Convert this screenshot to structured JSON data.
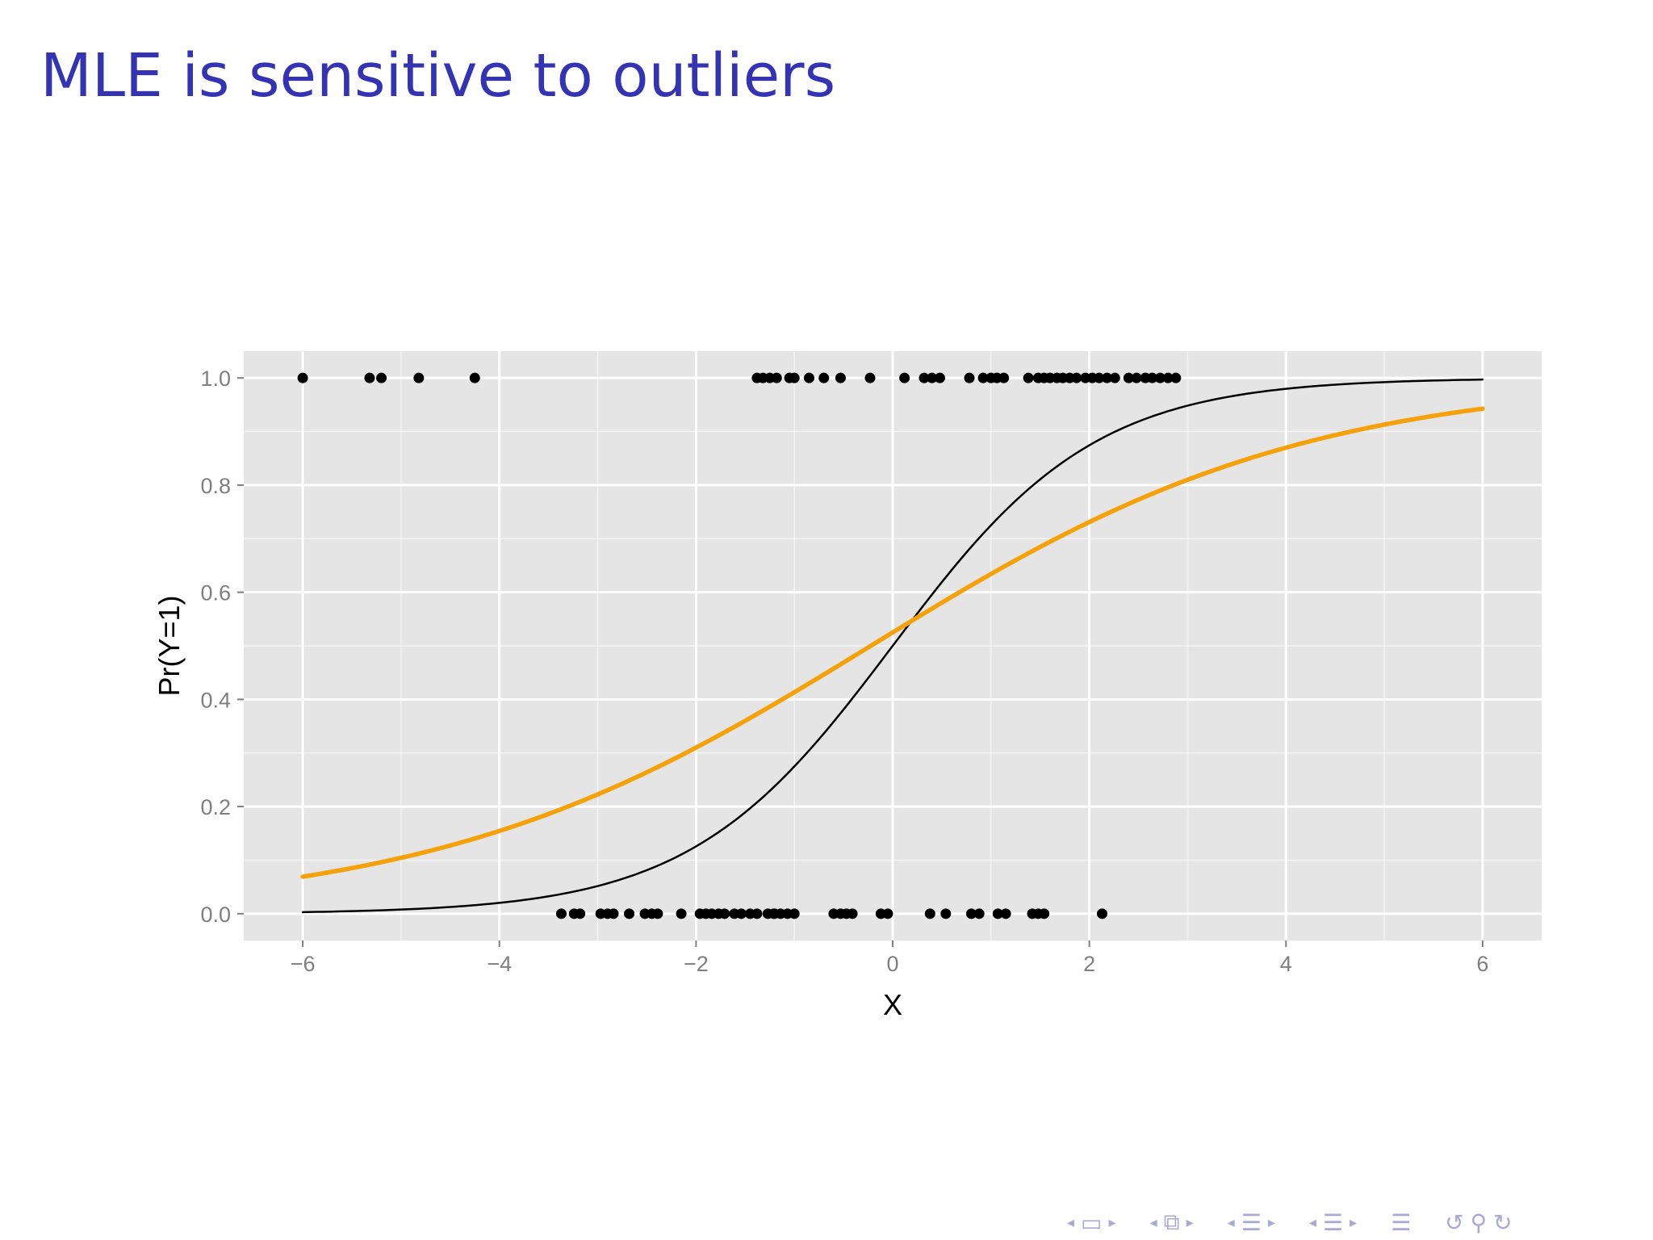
{
  "slide": {
    "title": "MLE is sensitive to outliers"
  },
  "navigation": {
    "prev_arrow": "◂",
    "next_arrow": "▸",
    "frame_icon": "frame-icon",
    "subsection_icon": "subsection-icon",
    "section_icon": "section-icon",
    "doc_icon": "document-icon",
    "search_icon": "search-icon",
    "back_icon": "back-icon",
    "forward_icon": "forward-icon",
    "color": "#a9a9d6"
  },
  "chart_data": {
    "type": "scatter",
    "xlabel": "X",
    "ylabel": "Pr(Y=1)",
    "xlim": [
      -6.6,
      6.6
    ],
    "ylim": [
      -0.05,
      1.05
    ],
    "xticks": [
      -6,
      -4,
      -2,
      0,
      2,
      4,
      6
    ],
    "xtick_labels": [
      "−6",
      "−4",
      "−2",
      "0",
      "2",
      "4",
      "6"
    ],
    "yticks": [
      0.0,
      0.2,
      0.4,
      0.6,
      0.8,
      1.0
    ],
    "ytick_labels": [
      "0.0",
      "0.2",
      "0.4",
      "0.6",
      "0.8",
      "1.0"
    ],
    "grid": true,
    "panel_background": "#e5e5e5",
    "grid_color": "#ffffff",
    "points": {
      "color": "#000000",
      "y1_x": [
        -6.0,
        -5.32,
        -5.2,
        -4.82,
        -4.25,
        -1.38,
        -1.32,
        -1.25,
        -1.18,
        -1.05,
        -1.0,
        -0.85,
        -0.7,
        -0.53,
        -0.23,
        0.12,
        0.32,
        0.4,
        0.48,
        0.78,
        0.92,
        1.0,
        1.06,
        1.13,
        1.38,
        1.48,
        1.54,
        1.6,
        1.67,
        1.73,
        1.8,
        1.87,
        1.96,
        2.03,
        2.1,
        2.18,
        2.26,
        2.4,
        2.48,
        2.57,
        2.64,
        2.72,
        2.8,
        2.88
      ],
      "y0_x": [
        -3.37,
        -3.24,
        -3.18,
        -2.97,
        -2.9,
        -2.84,
        -2.68,
        -2.52,
        -2.45,
        -2.39,
        -2.15,
        -1.96,
        -1.9,
        -1.84,
        -1.77,
        -1.71,
        -1.61,
        -1.54,
        -1.38,
        -1.27,
        -1.21,
        -1.45,
        -1.2,
        -1.14,
        -1.07,
        -1.0,
        -0.6,
        -0.53,
        -0.47,
        -0.41,
        -0.12,
        -0.05,
        0.38,
        0.54,
        0.8,
        0.88,
        1.07,
        1.15,
        1.42,
        1.48,
        1.54,
        2.13
      ]
    },
    "series": [
      {
        "kind": "logistic",
        "intercept": 0.0,
        "slope": 0.97,
        "color": "#000000",
        "line_width": 2.5
      },
      {
        "kind": "logistic",
        "intercept": 0.1,
        "slope": 0.45,
        "color": "#f5a10a",
        "line_width": 5.5
      }
    ]
  }
}
